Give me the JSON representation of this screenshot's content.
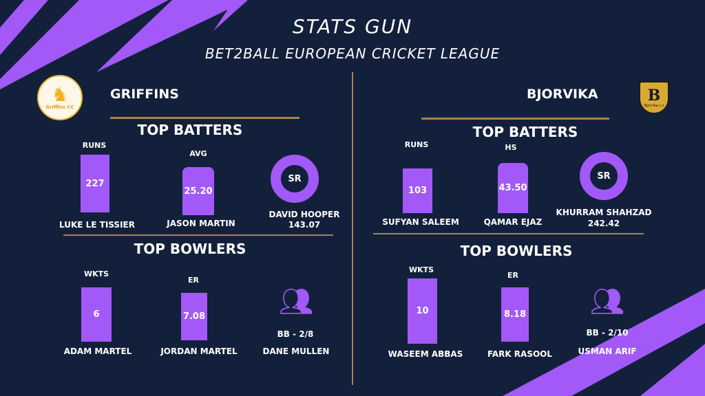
{
  "header": {
    "title": "STATS GUN",
    "subtitle": "BET2BALL EUROPEAN CRICKET LEAGUE"
  },
  "colors": {
    "background": "#13203b",
    "accent": "#a259f7",
    "divider": "#a8844a"
  },
  "teams": [
    {
      "name": "GRIFFINS",
      "logo_text": "Griffins CC",
      "batters_title": "TOP BATTERS",
      "batters": [
        {
          "stat": "RUNS",
          "value": "227",
          "player": "LUKE LE TISSIER"
        },
        {
          "stat": "AVG",
          "value": "25.20",
          "player": "JASON MARTIN"
        },
        {
          "stat": "SR",
          "value": "143.07",
          "player": "DAVID HOOPER"
        }
      ],
      "bowlers_title": "TOP BOWLERS",
      "bowlers": [
        {
          "stat": "WKTS",
          "value": "6",
          "player": "ADAM MARTEL"
        },
        {
          "stat": "ER",
          "value": "7.08",
          "player": "JORDAN MARTEL"
        },
        {
          "stat": "BB - 2/8",
          "player": "DANE MULLEN"
        }
      ]
    },
    {
      "name": "BJORVIKA",
      "logo_text": "Bjorvika c.c",
      "batters_title": "TOP BATTERS",
      "batters": [
        {
          "stat": "RUNS",
          "value": "103",
          "player": "SUFYAN SALEEM"
        },
        {
          "stat": "HS",
          "value": "43.50",
          "player": "QAMAR EJAZ"
        },
        {
          "stat": "SR",
          "value": "242.42",
          "player": "KHURRAM SHAHZAD"
        }
      ],
      "bowlers_title": "TOP BOWLERS",
      "bowlers": [
        {
          "stat": "WKTS",
          "value": "10",
          "player": "WASEEM ABBAS"
        },
        {
          "stat": "ER",
          "value": "8.18",
          "player": "FARK RASOOL"
        },
        {
          "stat": "BB - 2/10",
          "player": "USMAN ARIF"
        }
      ]
    }
  ]
}
